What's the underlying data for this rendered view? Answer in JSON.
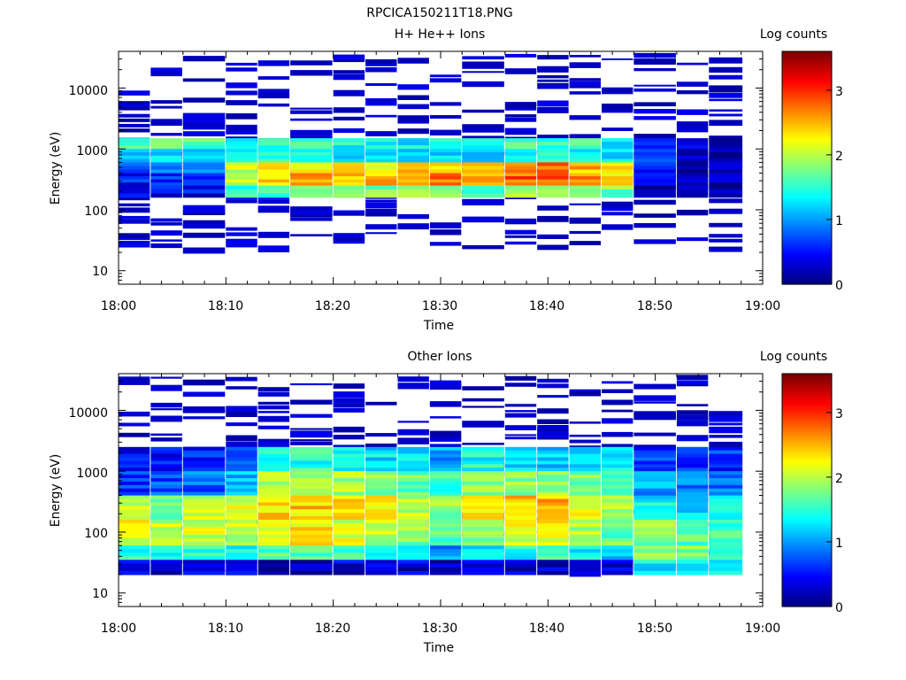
{
  "figure_title": "RPCICA150211T18.PNG",
  "chart_data": [
    {
      "type": "heatmap",
      "title": "H+ He++ Ions",
      "xlabel": "Time",
      "ylabel": "Energy (eV)",
      "xlim": [
        "18:00",
        "19:00"
      ],
      "ylim": [
        6,
        40000
      ],
      "yscale": "log",
      "x_ticks": [
        "18:00",
        "18:10",
        "18:20",
        "18:30",
        "18:40",
        "18:50",
        "19:00"
      ],
      "y_ticks": [
        "10",
        "100",
        "1000",
        "10000"
      ],
      "colorbar": {
        "label": "Log counts",
        "range": [
          0,
          3.6
        ],
        "ticks": [
          "0",
          "1",
          "2",
          "3"
        ]
      },
      "time_bins": [
        "18:00",
        "18:03",
        "18:06",
        "18:10",
        "18:13",
        "18:16",
        "18:20",
        "18:23",
        "18:26",
        "18:29",
        "18:32",
        "18:36",
        "18:39",
        "18:42",
        "18:45",
        "18:48",
        "18:52",
        "18:55"
      ],
      "bands": [
        {
          "emin": 1000,
          "emax": 1500,
          "values": [
            1.6,
            1.7,
            1.6,
            1.5,
            1.4,
            1.5,
            1.4,
            1.3,
            1.3,
            1.3,
            1.4,
            1.5,
            1.6,
            1.5,
            1.4,
            0.7,
            0.3,
            0.2
          ]
        },
        {
          "emin": 600,
          "emax": 1000,
          "values": [
            1.2,
            1.3,
            1.2,
            1.3,
            1.4,
            1.3,
            1.2,
            1.2,
            1.1,
            1.2,
            1.3,
            1.4,
            1.5,
            1.4,
            1.3,
            0.6,
            0.3,
            0.2
          ]
        },
        {
          "emin": 400,
          "emax": 600,
          "values": [
            0.8,
            0.9,
            0.9,
            2.0,
            2.2,
            2.4,
            2.2,
            2.3,
            2.4,
            2.5,
            2.3,
            2.6,
            2.7,
            2.5,
            2.3,
            0.5,
            0.2,
            0.1
          ]
        },
        {
          "emin": 250,
          "emax": 400,
          "values": [
            0.5,
            0.6,
            0.6,
            2.1,
            2.3,
            2.7,
            2.4,
            2.5,
            2.6,
            2.7,
            2.4,
            2.8,
            2.9,
            2.6,
            2.4,
            0.4,
            0.2,
            0.1
          ]
        },
        {
          "emin": 160,
          "emax": 250,
          "values": [
            0.4,
            0.4,
            0.4,
            1.6,
            1.7,
            1.9,
            1.7,
            1.8,
            1.8,
            1.9,
            1.7,
            2.0,
            2.0,
            1.9,
            1.8,
            0.3,
            0.2,
            0.1
          ]
        }
      ],
      "sparse_counts_log": 0.2
    },
    {
      "type": "heatmap",
      "title": "Other Ions",
      "xlabel": "Time",
      "ylabel": "Energy (eV)",
      "xlim": [
        "18:00",
        "19:00"
      ],
      "ylim": [
        6,
        40000
      ],
      "yscale": "log",
      "x_ticks": [
        "18:00",
        "18:10",
        "18:20",
        "18:30",
        "18:40",
        "18:50",
        "19:00"
      ],
      "y_ticks": [
        "10",
        "100",
        "1000",
        "10000"
      ],
      "colorbar": {
        "label": "Log counts",
        "range": [
          0,
          3.6
        ],
        "ticks": [
          "0",
          "1",
          "2",
          "3"
        ]
      },
      "time_bins": [
        "18:00",
        "18:03",
        "18:06",
        "18:10",
        "18:13",
        "18:16",
        "18:20",
        "18:23",
        "18:26",
        "18:29",
        "18:32",
        "18:36",
        "18:39",
        "18:42",
        "18:45",
        "18:48",
        "18:52",
        "18:55"
      ],
      "bands": [
        {
          "emin": 1000,
          "emax": 2500,
          "values": [
            0.4,
            0.5,
            0.5,
            0.6,
            1.4,
            1.5,
            1.4,
            1.3,
            1.2,
            1.0,
            1.4,
            1.3,
            1.2,
            1.3,
            1.3,
            0.6,
            0.5,
            0.6
          ]
        },
        {
          "emin": 400,
          "emax": 1000,
          "values": [
            0.6,
            0.7,
            0.8,
            1.1,
            1.9,
            2.0,
            1.9,
            1.8,
            1.7,
            1.5,
            1.8,
            1.9,
            1.9,
            1.8,
            1.7,
            1.0,
            0.9,
            0.9
          ]
        },
        {
          "emin": 160,
          "emax": 400,
          "values": [
            2.1,
            1.8,
            2.0,
            2.1,
            2.4,
            2.4,
            2.3,
            2.2,
            2.0,
            1.9,
            2.2,
            2.4,
            2.5,
            2.3,
            2.0,
            1.3,
            1.2,
            1.3
          ]
        },
        {
          "emin": 60,
          "emax": 160,
          "values": [
            2.2,
            2.0,
            2.1,
            2.0,
            2.2,
            2.3,
            2.1,
            2.0,
            1.8,
            1.6,
            1.9,
            2.1,
            2.2,
            2.0,
            1.7,
            1.8,
            1.7,
            1.6
          ]
        },
        {
          "emin": 35,
          "emax": 60,
          "values": [
            1.5,
            1.4,
            1.5,
            1.4,
            1.6,
            1.7,
            1.5,
            1.3,
            1.2,
            1.0,
            1.3,
            1.4,
            1.5,
            1.3,
            1.1,
            1.9,
            1.8,
            1.6
          ]
        },
        {
          "emin": 20,
          "emax": 35,
          "values": [
            0.3,
            0.3,
            0.3,
            0.3,
            0.2,
            0.2,
            0.3,
            0.3,
            0.3,
            0.2,
            0.3,
            0.3,
            0.3,
            0.3,
            0.3,
            1.3,
            1.2,
            1.3
          ]
        }
      ],
      "sparse_counts_log": 0.2
    }
  ]
}
